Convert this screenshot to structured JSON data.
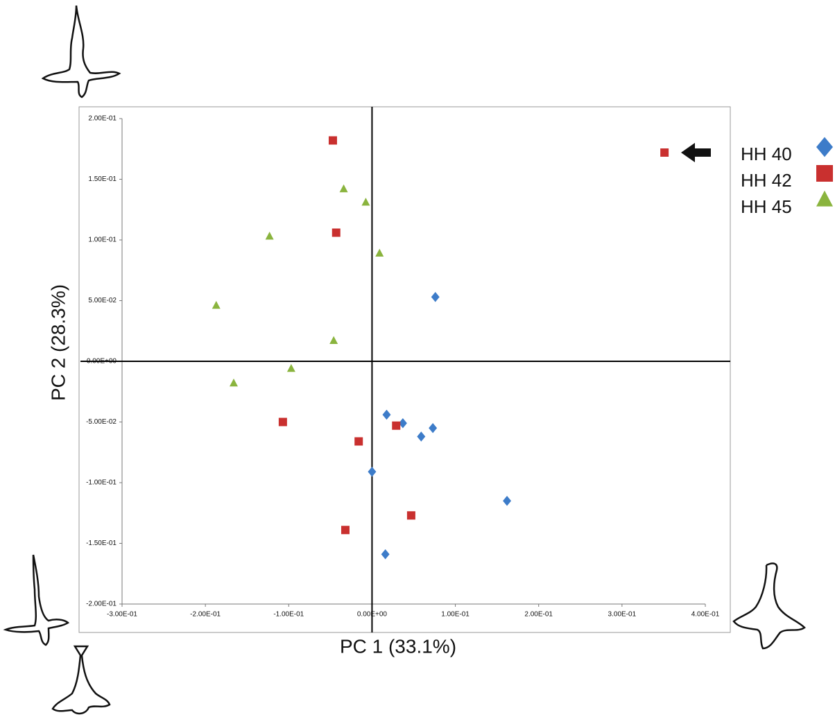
{
  "chart_data": {
    "type": "scatter",
    "x_label": "PC 1 (33.1%)",
    "y_label": "PC 2 (28.3%)",
    "xlim": [
      -0.3,
      0.4
    ],
    "ylim": [
      -0.2,
      0.2
    ],
    "xticks": [
      {
        "value": -0.3,
        "label": "-3.00E-01"
      },
      {
        "value": -0.2,
        "label": "-2.00E-01"
      },
      {
        "value": -0.1,
        "label": "-1.00E-01"
      },
      {
        "value": 0,
        "label": "0.00E+00"
      },
      {
        "value": 0.1,
        "label": "1.00E-01"
      },
      {
        "value": 0.2,
        "label": "2.00E-01"
      },
      {
        "value": 0.3,
        "label": "3.00E-01"
      },
      {
        "value": 0.4,
        "label": "4.00E-01"
      }
    ],
    "yticks": [
      {
        "value": 0.2,
        "label": "2.00E-01"
      },
      {
        "value": 0.15,
        "label": "1.50E-01"
      },
      {
        "value": 0.1,
        "label": "1.00E-01"
      },
      {
        "value": 0.05,
        "label": "5.00E-02"
      },
      {
        "value": 0,
        "label": "0.00E+00"
      },
      {
        "value": -0.05,
        "label": "-5.00E-02"
      },
      {
        "value": -0.1,
        "label": "-1.00E-01"
      },
      {
        "value": -0.15,
        "label": "-1.50E-01"
      },
      {
        "value": -0.2,
        "label": "-2.00E-01"
      }
    ],
    "series": [
      {
        "name": "HH 40",
        "color": "#3d7cc9",
        "marker": "diamond",
        "x": [
          0.076,
          0.0175,
          0.037,
          0.059,
          0.073,
          0.0,
          0.162,
          0.016
        ],
        "values": [
          0.053,
          -0.044,
          -0.051,
          -0.062,
          -0.055,
          -0.091,
          -0.115,
          -0.159
        ]
      },
      {
        "name": "HH 42",
        "color": "#c9302f",
        "marker": "square",
        "x": [
          0.351,
          -0.047,
          -0.043,
          -0.107,
          0.029,
          -0.016,
          0.047,
          -0.032
        ],
        "values": [
          0.172,
          0.182,
          0.106,
          -0.05,
          -0.053,
          -0.066,
          -0.127,
          -0.139
        ]
      },
      {
        "name": "HH 45",
        "color": "#8ab43e",
        "marker": "triangle",
        "x": [
          -0.034,
          -0.0075,
          -0.123,
          0.009,
          -0.187,
          -0.046,
          -0.097,
          -0.166
        ],
        "values": [
          0.142,
          0.131,
          0.103,
          0.089,
          0.046,
          0.017,
          -0.006,
          -0.018
        ]
      }
    ]
  }
}
